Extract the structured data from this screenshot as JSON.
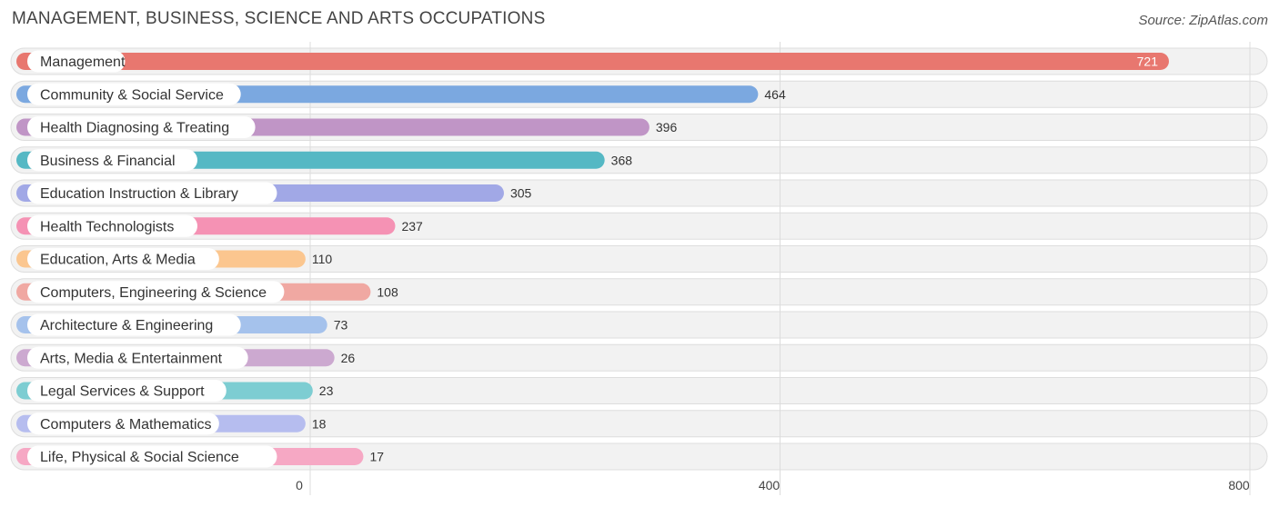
{
  "title": "MANAGEMENT, BUSINESS, SCIENCE AND ARTS OCCUPATIONS",
  "source": "Source: ZipAtlas.com",
  "chart_data": {
    "type": "bar",
    "orientation": "horizontal",
    "categories": [
      "Management",
      "Community & Social Service",
      "Health Diagnosing & Treating",
      "Business & Financial",
      "Education Instruction & Library",
      "Health Technologists",
      "Education, Arts & Media",
      "Computers, Engineering & Science",
      "Architecture & Engineering",
      "Arts, Media & Entertainment",
      "Legal Services & Support",
      "Computers & Mathematics",
      "Life, Physical & Social Science"
    ],
    "values": [
      721,
      464,
      396,
      368,
      305,
      237,
      110,
      108,
      73,
      26,
      23,
      18,
      17
    ],
    "colors": [
      "#e8776f",
      "#7ba8e0",
      "#c095c6",
      "#55b8c4",
      "#a1a8e6",
      "#f592b4",
      "#fbc68f",
      "#f0a8a2",
      "#a5c2ec",
      "#cca9d0",
      "#7dcdd2",
      "#b6bdef",
      "#f6a8c4"
    ],
    "xticks": [
      0,
      400,
      800
    ],
    "xlim": [
      0,
      800
    ],
    "grid": true
  }
}
